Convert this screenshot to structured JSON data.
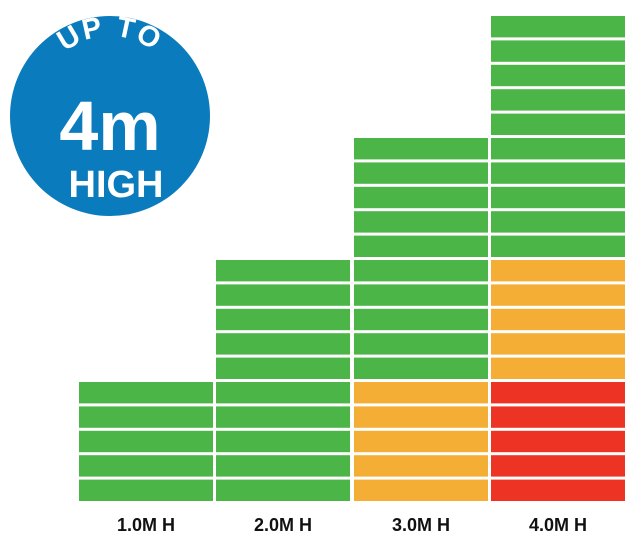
{
  "badge": {
    "line1": "UP TO",
    "line2": "4m",
    "line3": "HIGH",
    "color": "#0a7bbd"
  },
  "colors": {
    "green": "#4bb548",
    "orange": "#f4ae35",
    "red": "#ec3324",
    "divider": "#ffffff"
  },
  "columns": [
    {
      "label": "1.0M H",
      "segments": [
        "green",
        "green",
        "green",
        "green",
        "green"
      ]
    },
    {
      "label": "2.0M H",
      "segments": [
        "green",
        "green",
        "green",
        "green",
        "green",
        "green",
        "green",
        "green",
        "green",
        "green"
      ]
    },
    {
      "label": "3.0M H",
      "segments": [
        "orange",
        "orange",
        "orange",
        "orange",
        "orange",
        "green",
        "green",
        "green",
        "green",
        "green",
        "green",
        "green",
        "green",
        "green",
        "green"
      ]
    },
    {
      "label": "4.0M H",
      "segments": [
        "red",
        "red",
        "red",
        "red",
        "red",
        "orange",
        "orange",
        "orange",
        "orange",
        "orange",
        "green",
        "green",
        "green",
        "green",
        "green",
        "green",
        "green",
        "green",
        "green",
        "green"
      ]
    }
  ]
}
